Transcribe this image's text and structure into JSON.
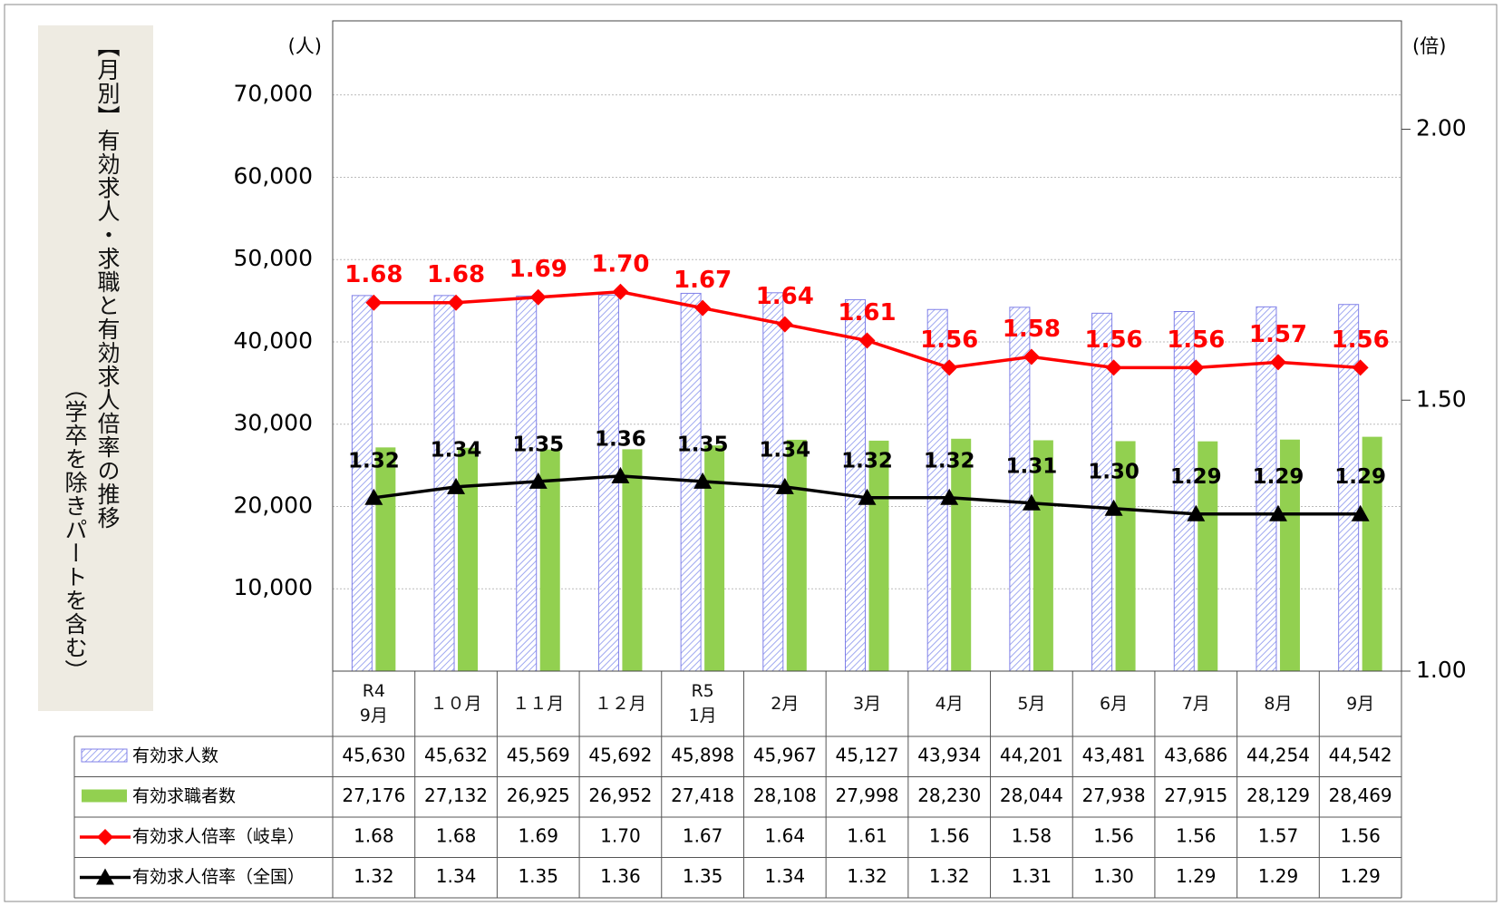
{
  "chart_data": {
    "type": "bar",
    "title": "【月別】有効求人・求職と有効求人倍率の推移",
    "subtitle": "（学卒を除きパートを含む）",
    "y_unit": "(人)",
    "y2_unit": "(倍)",
    "categories": [
      "R4\n9月",
      "１０月",
      "１１月",
      "１２月",
      "R5\n1月",
      "2月",
      "3月",
      "4月",
      "5月",
      "6月",
      "7月",
      "8月",
      "9月"
    ],
    "ylim": [
      0,
      79000
    ],
    "yticks": [
      {
        "value": 10000,
        "label": "10,000"
      },
      {
        "value": 20000,
        "label": "20,000"
      },
      {
        "value": 30000,
        "label": "30,000"
      },
      {
        "value": 40000,
        "label": "40,000"
      },
      {
        "value": 50000,
        "label": "50,000"
      },
      {
        "value": 60000,
        "label": "60,000"
      },
      {
        "value": 70000,
        "label": "70,000"
      }
    ],
    "y2lim": [
      1.0,
      2.2
    ],
    "y2ticks": [
      {
        "value": 1,
        "label": "1.00"
      },
      {
        "value": 1.5,
        "label": "1.50"
      },
      {
        "value": 2,
        "label": "2.00"
      }
    ],
    "grid": true,
    "series": [
      {
        "name": "有効求人数",
        "type": "bar",
        "color": "#8080e8",
        "pattern": "hatched",
        "values": [
          45630,
          45632,
          45569,
          45692,
          45898,
          45967,
          45127,
          43934,
          44201,
          43481,
          43686,
          44254,
          44542
        ],
        "value_labels": [
          "45,630",
          "45,632",
          "45,569",
          "45,692",
          "45,898",
          "45,967",
          "45,127",
          "43,934",
          "44,201",
          "43,481",
          "43,686",
          "44,254",
          "44,542"
        ]
      },
      {
        "name": "有効求職者数",
        "type": "bar",
        "color": "#92d050",
        "values": [
          27176,
          27132,
          26925,
          26952,
          27418,
          28108,
          27998,
          28230,
          28044,
          27938,
          27915,
          28129,
          28469
        ],
        "value_labels": [
          "27,176",
          "27,132",
          "26,925",
          "26,952",
          "27,418",
          "28,108",
          "27,998",
          "28,230",
          "28,044",
          "27,938",
          "27,915",
          "28,129",
          "28,469"
        ]
      },
      {
        "name": "有効求人倍率（岐阜）",
        "type": "line",
        "axis": "y2",
        "color": "#ff0000",
        "marker": "diamond",
        "values": [
          1.68,
          1.68,
          1.69,
          1.7,
          1.67,
          1.64,
          1.61,
          1.56,
          1.58,
          1.56,
          1.56,
          1.57,
          1.56
        ],
        "value_labels": [
          "1.68",
          "1.68",
          "1.69",
          "1.70",
          "1.67",
          "1.64",
          "1.61",
          "1.56",
          "1.58",
          "1.56",
          "1.56",
          "1.57",
          "1.56"
        ]
      },
      {
        "name": "有効求人倍率（全国）",
        "type": "line",
        "axis": "y2",
        "color": "#000000",
        "marker": "triangle",
        "values": [
          1.32,
          1.34,
          1.35,
          1.36,
          1.35,
          1.34,
          1.32,
          1.32,
          1.31,
          1.3,
          1.29,
          1.29,
          1.29
        ],
        "value_labels": [
          "1.32",
          "1.34",
          "1.35",
          "1.36",
          "1.35",
          "1.34",
          "1.32",
          "1.32",
          "1.31",
          "1.30",
          "1.29",
          "1.29",
          "1.29"
        ]
      }
    ]
  }
}
